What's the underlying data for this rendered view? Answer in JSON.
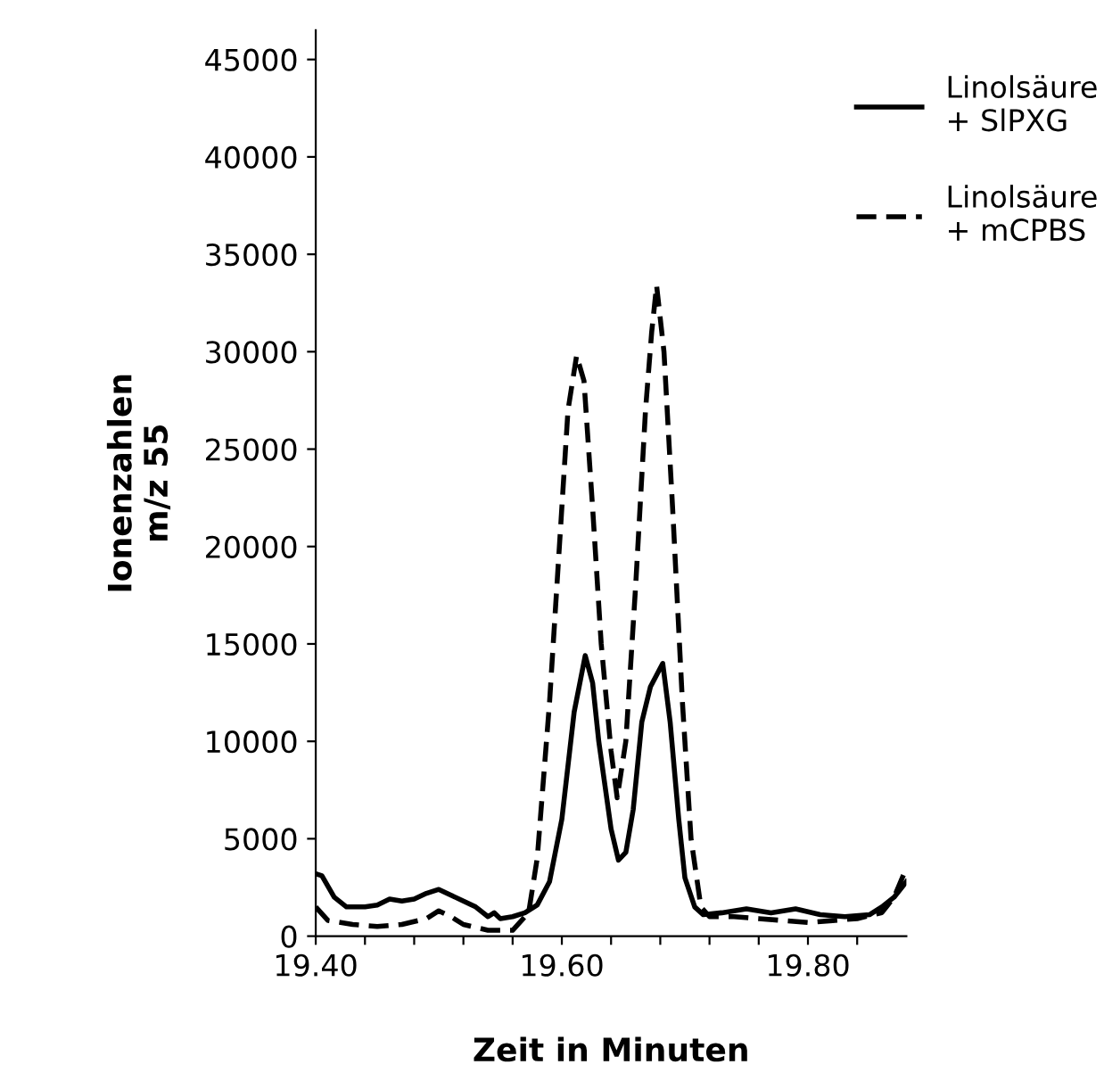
{
  "chart_data": {
    "type": "line",
    "xlabel": "Zeit in Minuten",
    "ylabel": "Ionenzahlen\nm/z 55",
    "xlim": [
      19.4,
      19.88
    ],
    "xticks": [
      {
        "value": 19.4,
        "label": "19.40"
      },
      {
        "value": 19.44,
        "label": null
      },
      {
        "value": 19.48,
        "label": null
      },
      {
        "value": 19.52,
        "label": null
      },
      {
        "value": 19.56,
        "label": null
      },
      {
        "value": 19.6,
        "label": "19.60"
      },
      {
        "value": 19.64,
        "label": null
      },
      {
        "value": 19.68,
        "label": null
      },
      {
        "value": 19.72,
        "label": null
      },
      {
        "value": 19.76,
        "label": null
      },
      {
        "value": 19.8,
        "label": "19.80"
      },
      {
        "value": 19.84,
        "label": null
      }
    ],
    "ylim": [
      0,
      46500
    ],
    "yticks": [
      0,
      5000,
      10000,
      15000,
      20000,
      25000,
      30000,
      35000,
      40000,
      45000
    ],
    "grid": false,
    "legend": "top right",
    "series": [
      {
        "name": "Linolsäure\n+ SlPXG",
        "color": "#000000",
        "line_style": "solid",
        "x": [
          19.4,
          19.405,
          19.415,
          19.425,
          19.44,
          19.45,
          19.46,
          19.47,
          19.48,
          19.49,
          19.5,
          19.51,
          19.52,
          19.53,
          19.54,
          19.545,
          19.55,
          19.56,
          19.57,
          19.58,
          19.59,
          19.6,
          19.61,
          19.619,
          19.625,
          19.63,
          19.64,
          19.646,
          19.652,
          19.658,
          19.665,
          19.672,
          19.682,
          19.688,
          19.695,
          19.7,
          19.708,
          19.715,
          19.73,
          19.75,
          19.77,
          19.79,
          19.81,
          19.83,
          19.85,
          19.86,
          19.87,
          19.88
        ],
        "values": [
          3200,
          3100,
          2000,
          1500,
          1500,
          1600,
          1900,
          1800,
          1900,
          2200,
          2400,
          2100,
          1800,
          1500,
          1000,
          1200,
          900,
          1000,
          1200,
          1600,
          2800,
          6000,
          11500,
          14400,
          13000,
          10000,
          5500,
          3900,
          4300,
          6500,
          11000,
          12800,
          14000,
          11000,
          6000,
          3000,
          1500,
          1100,
          1200,
          1400,
          1200,
          1400,
          1100,
          1000,
          1100,
          1500,
          2000,
          2800
        ]
      },
      {
        "name": "Linolsäure\n+ mCPBS",
        "color": "#000000",
        "line_style": "dashed",
        "x": [
          19.4,
          19.41,
          19.43,
          19.45,
          19.47,
          19.49,
          19.5,
          19.51,
          19.52,
          19.54,
          19.56,
          19.573,
          19.58,
          19.59,
          19.6,
          19.605,
          19.612,
          19.618,
          19.625,
          19.632,
          19.64,
          19.645,
          19.652,
          19.66,
          19.668,
          19.673,
          19.677,
          19.683,
          19.69,
          19.698,
          19.705,
          19.713,
          19.72,
          19.74,
          19.76,
          19.78,
          19.8,
          19.82,
          19.84,
          19.86,
          19.87,
          19.88
        ],
        "values": [
          1500,
          800,
          600,
          500,
          600,
          900,
          1300,
          1000,
          600,
          300,
          300,
          1200,
          4000,
          12000,
          22000,
          27000,
          29800,
          28500,
          22000,
          15000,
          9500,
          7100,
          10000,
          18000,
          27000,
          31000,
          33400,
          30000,
          22000,
          12000,
          5000,
          1500,
          1000,
          1000,
          900,
          800,
          700,
          800,
          900,
          1200,
          2000,
          3500
        ]
      }
    ]
  }
}
